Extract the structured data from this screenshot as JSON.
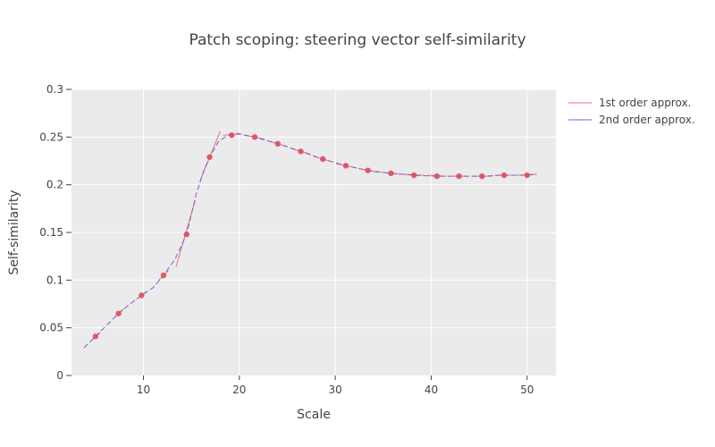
{
  "chart_data": {
    "type": "line",
    "title": "Patch scoping: steering vector self-similarity",
    "xlabel": "Scale",
    "ylabel": "Self-similarity",
    "xlim": [
      2.5,
      53
    ],
    "ylim": [
      0,
      0.3
    ],
    "xticks": [
      10,
      20,
      30,
      40,
      50
    ],
    "xtick_labels": [
      "10",
      "20",
      "30",
      "40",
      "50"
    ],
    "yticks": [
      0,
      0.05,
      0.1,
      0.15,
      0.2,
      0.25,
      0.3
    ],
    "ytick_labels": [
      "0",
      "0.05",
      "0.1",
      "0.15",
      "0.2",
      "0.25",
      "0.3"
    ],
    "grid": true,
    "legend_position": "top-right",
    "points": {
      "x": [
        5.0,
        7.4,
        9.8,
        12.1,
        14.5,
        16.9,
        19.2,
        21.6,
        24.0,
        26.4,
        28.7,
        31.1,
        33.4,
        35.8,
        38.2,
        40.6,
        42.9,
        45.3,
        47.6,
        50.0
      ],
      "y": [
        0.041,
        0.065,
        0.084,
        0.105,
        0.148,
        0.229,
        0.252,
        0.25,
        0.243,
        0.235,
        0.227,
        0.22,
        0.215,
        0.212,
        0.21,
        0.209,
        0.209,
        0.209,
        0.21,
        0.21
      ],
      "color": "#e04b5f"
    },
    "series": [
      {
        "name": "1st order approx.",
        "color": "#e8727b",
        "dash": "none",
        "segments": [
          [
            [
              4.5,
              0.036
            ],
            [
              5.5,
              0.045
            ]
          ],
          [
            [
              6.9,
              0.06
            ],
            [
              7.9,
              0.07
            ]
          ],
          [
            [
              9.3,
              0.08
            ],
            [
              10.3,
              0.088
            ]
          ],
          [
            [
              11.6,
              0.1
            ],
            [
              12.6,
              0.11
            ]
          ],
          [
            [
              13.4,
              0.114
            ],
            [
              15.4,
              0.184
            ]
          ],
          [
            [
              15.9,
              0.204
            ],
            [
              18.0,
              0.256
            ]
          ],
          [
            [
              18.3,
              0.252
            ],
            [
              20.2,
              0.253
            ]
          ],
          [
            [
              20.6,
              0.252
            ],
            [
              22.6,
              0.248
            ]
          ],
          [
            [
              23.0,
              0.246
            ],
            [
              25.0,
              0.24
            ]
          ],
          [
            [
              25.4,
              0.238
            ],
            [
              27.4,
              0.232
            ]
          ],
          [
            [
              27.7,
              0.23
            ],
            [
              29.7,
              0.224
            ]
          ],
          [
            [
              30.1,
              0.222
            ],
            [
              32.1,
              0.218
            ]
          ],
          [
            [
              32.4,
              0.217
            ],
            [
              34.4,
              0.213
            ]
          ],
          [
            [
              34.8,
              0.213
            ],
            [
              36.8,
              0.211
            ]
          ],
          [
            [
              37.2,
              0.211
            ],
            [
              39.2,
              0.21
            ]
          ],
          [
            [
              39.6,
              0.21
            ],
            [
              41.6,
              0.209
            ]
          ],
          [
            [
              41.9,
              0.209
            ],
            [
              43.9,
              0.209
            ]
          ],
          [
            [
              44.3,
              0.209
            ],
            [
              46.3,
              0.209
            ]
          ],
          [
            [
              46.6,
              0.21
            ],
            [
              48.6,
              0.21
            ]
          ],
          [
            [
              49.0,
              0.21
            ],
            [
              51.0,
              0.211
            ]
          ]
        ]
      },
      {
        "name": "2nd order approx.",
        "color": "#7b62c9",
        "dash": "6,3",
        "segments": [
          [
            [
              3.8,
              0.029
            ],
            [
              5.0,
              0.041
            ],
            [
              6.2,
              0.053
            ],
            [
              7.4,
              0.065
            ],
            [
              8.6,
              0.075
            ],
            [
              9.8,
              0.084
            ],
            [
              11.0,
              0.092
            ],
            [
              12.1,
              0.105
            ],
            [
              13.3,
              0.122
            ],
            [
              14.5,
              0.148
            ],
            [
              15.5,
              0.19
            ],
            [
              16.3,
              0.215
            ],
            [
              16.9,
              0.229
            ],
            [
              17.8,
              0.245
            ],
            [
              18.8,
              0.252
            ],
            [
              19.8,
              0.254
            ],
            [
              21.0,
              0.251
            ],
            [
              21.6,
              0.25
            ],
            [
              24.0,
              0.243
            ],
            [
              26.4,
              0.235
            ],
            [
              28.7,
              0.227
            ],
            [
              31.1,
              0.22
            ],
            [
              33.4,
              0.215
            ],
            [
              35.8,
              0.212
            ],
            [
              38.2,
              0.21
            ],
            [
              40.6,
              0.209
            ],
            [
              42.9,
              0.209
            ],
            [
              45.3,
              0.209
            ],
            [
              47.6,
              0.21
            ],
            [
              50.0,
              0.21
            ],
            [
              51.0,
              0.211
            ]
          ]
        ]
      }
    ]
  }
}
